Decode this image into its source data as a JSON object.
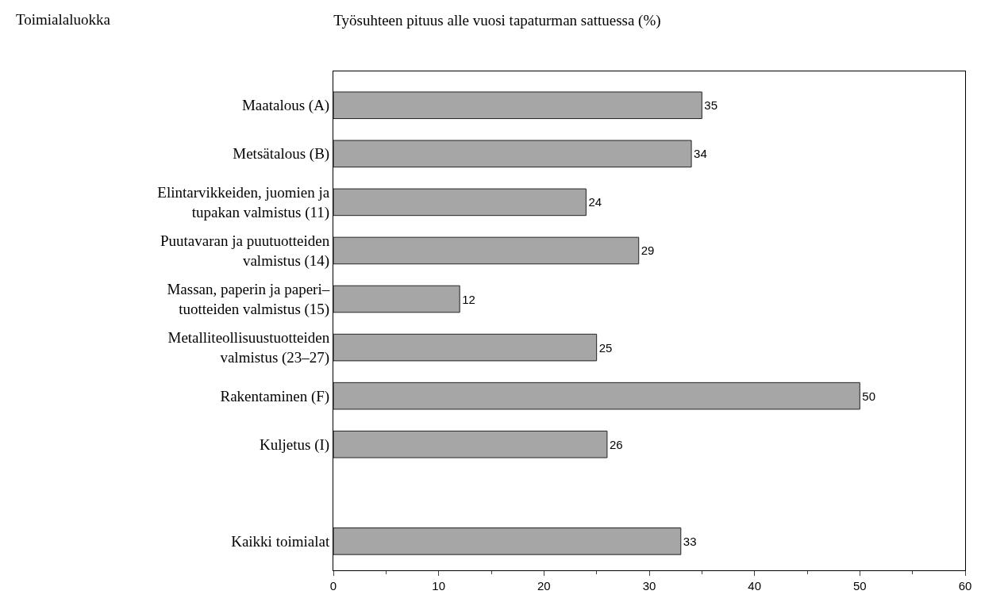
{
  "chart_data": {
    "type": "bar",
    "orientation": "horizontal",
    "title": "Työsuhteen pituus alle vuosi tapaturman sattuessa (%)",
    "annotations": [
      "Toimialaluokka"
    ],
    "categories": [
      "Maatalous (A)",
      "Metsätalous (B)",
      "Elintarvikkeiden, juomien ja\ntupakan valmistus (11)",
      "Puutavaran ja puutuotteiden\nvalmistus (14)",
      "Massan, paperin ja paperi–\ntuotteiden valmistus (15)",
      "Metalliteollisuustuotteiden\nvalmistus (23–27)",
      "Rakentaminen (F)",
      "Kuljetus (I)",
      null,
      "Kaikki toimialat"
    ],
    "values": [
      35,
      34,
      24,
      29,
      12,
      25,
      50,
      26,
      null,
      33
    ],
    "color": "#a6a6a6",
    "xlim": [
      0,
      60
    ],
    "xticks": [
      0,
      10,
      20,
      30,
      40,
      50,
      60
    ],
    "data_labels": true,
    "legend": false
  }
}
